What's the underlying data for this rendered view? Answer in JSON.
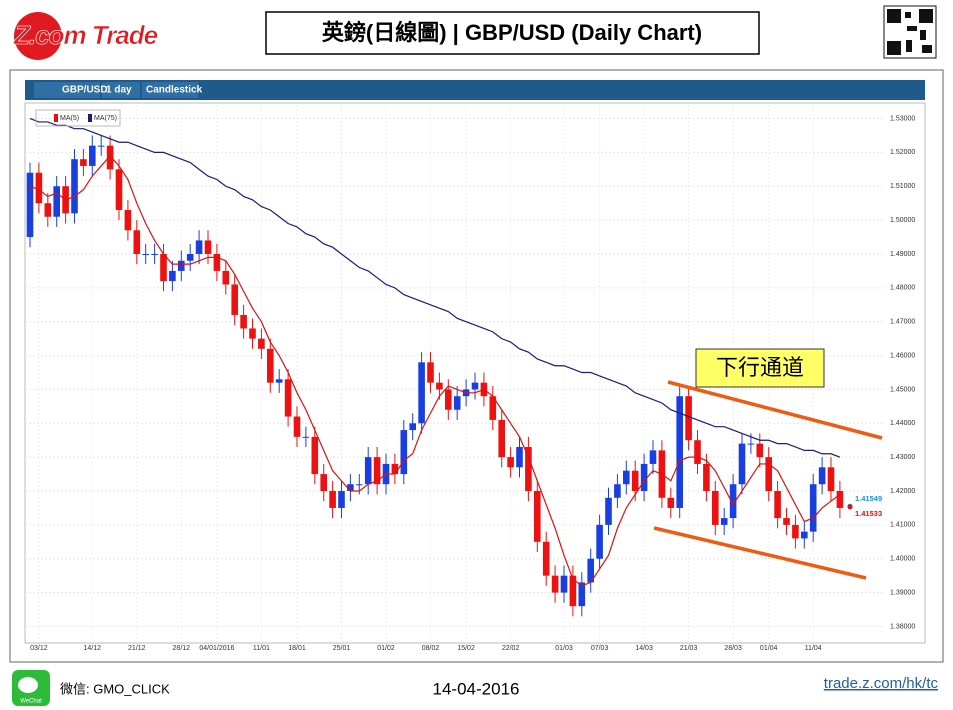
{
  "header": {
    "logo": "Z.com Trade",
    "title": "英鎊(日線圖) | GBP/USD  (Daily Chart)"
  },
  "toolbar": [
    "GBP/USD",
    "1 day",
    "Candlestick"
  ],
  "annotation": "下行通道",
  "footer": {
    "wechat_icon": "WeChat",
    "wechat": "微信: GMO_CLICK",
    "date": "14-04-2016",
    "link": "trade.z.com/hk/tc"
  },
  "chart_data": {
    "type": "candlestick",
    "categories": [
      null,
      "03/12",
      null,
      null,
      null,
      null,
      null,
      "14/12",
      null,
      null,
      null,
      null,
      "21/12",
      null,
      null,
      null,
      null,
      "28/12",
      null,
      null,
      null,
      "04/01/2016",
      null,
      null,
      null,
      null,
      "11/01",
      null,
      null,
      null,
      "18/01",
      null,
      null,
      null,
      null,
      "25/01",
      null,
      null,
      null,
      null,
      "01/02",
      null,
      null,
      null,
      null,
      "08/02",
      null,
      null,
      null,
      "15/02",
      null,
      null,
      null,
      null,
      "22/02",
      null,
      null,
      null,
      null,
      null,
      "01/03",
      null,
      null,
      null,
      "07/03",
      null,
      null,
      null,
      null,
      "14/03",
      null,
      null,
      null,
      null,
      "21/03",
      null,
      null,
      null,
      null,
      "28/03",
      null,
      null,
      null,
      "01/04",
      null,
      null,
      null,
      null,
      "11/04",
      null,
      null,
      null
    ],
    "open": [
      1.495,
      1.514,
      1.505,
      1.501,
      1.51,
      1.502,
      1.518,
      1.516,
      1.522,
      1.522,
      1.515,
      1.503,
      1.497,
      1.49,
      1.49,
      1.49,
      1.482,
      1.485,
      1.488,
      1.49,
      1.494,
      1.49,
      1.485,
      1.481,
      1.472,
      1.468,
      1.465,
      1.462,
      1.452,
      1.453,
      1.442,
      1.436,
      1.436,
      1.425,
      1.42,
      1.415,
      1.42,
      1.422,
      1.422,
      1.43,
      1.422,
      1.428,
      1.425,
      1.438,
      1.44,
      1.458,
      1.452,
      1.45,
      1.444,
      1.448,
      1.45,
      1.452,
      1.448,
      1.441,
      1.43,
      1.427,
      1.433,
      1.42,
      1.405,
      1.395,
      1.39,
      1.395,
      1.386,
      1.393,
      1.4,
      1.41,
      1.418,
      1.422,
      1.426,
      1.42,
      1.428,
      1.432,
      1.418,
      1.415,
      1.448,
      1.435,
      1.428,
      1.42,
      1.41,
      1.412,
      1.422,
      1.434,
      1.434,
      1.43,
      1.42,
      1.412,
      1.41,
      1.406,
      1.408,
      1.422,
      1.427,
      1.42
    ],
    "high": [
      1.517,
      1.517,
      1.508,
      1.513,
      1.513,
      1.521,
      1.521,
      1.525,
      1.525,
      1.525,
      1.518,
      1.506,
      1.5,
      1.493,
      1.493,
      1.493,
      1.488,
      1.491,
      1.493,
      1.497,
      1.497,
      1.493,
      1.488,
      1.484,
      1.475,
      1.471,
      1.468,
      1.465,
      1.456,
      1.456,
      1.445,
      1.439,
      1.439,
      1.428,
      1.423,
      1.423,
      1.425,
      1.425,
      1.433,
      1.433,
      1.431,
      1.431,
      1.441,
      1.443,
      1.461,
      1.461,
      1.455,
      1.453,
      1.451,
      1.453,
      1.455,
      1.455,
      1.451,
      1.444,
      1.433,
      1.436,
      1.436,
      1.423,
      1.408,
      1.398,
      1.398,
      1.398,
      1.396,
      1.403,
      1.413,
      1.421,
      1.425,
      1.429,
      1.429,
      1.431,
      1.435,
      1.435,
      1.421,
      1.451,
      1.451,
      1.438,
      1.431,
      1.423,
      1.415,
      1.425,
      1.437,
      1.437,
      1.437,
      1.433,
      1.423,
      1.415,
      1.413,
      1.411,
      1.425,
      1.43,
      1.43,
      1.423
    ],
    "low": [
      1.492,
      1.502,
      1.498,
      1.498,
      1.499,
      1.499,
      1.513,
      1.513,
      1.519,
      1.512,
      1.5,
      1.494,
      1.487,
      1.487,
      1.487,
      1.479,
      1.479,
      1.482,
      1.485,
      1.487,
      1.487,
      1.482,
      1.478,
      1.469,
      1.465,
      1.462,
      1.459,
      1.449,
      1.449,
      1.439,
      1.433,
      1.433,
      1.422,
      1.417,
      1.412,
      1.412,
      1.417,
      1.419,
      1.419,
      1.419,
      1.419,
      1.422,
      1.422,
      1.435,
      1.437,
      1.449,
      1.447,
      1.441,
      1.441,
      1.445,
      1.447,
      1.445,
      1.438,
      1.427,
      1.424,
      1.424,
      1.417,
      1.402,
      1.392,
      1.387,
      1.387,
      1.383,
      1.383,
      1.39,
      1.397,
      1.407,
      1.415,
      1.419,
      1.417,
      1.417,
      1.425,
      1.415,
      1.412,
      1.412,
      1.432,
      1.425,
      1.417,
      1.407,
      1.407,
      1.409,
      1.419,
      1.431,
      1.427,
      1.417,
      1.409,
      1.407,
      1.403,
      1.403,
      1.405,
      1.419,
      1.417,
      1.412
    ],
    "close": [
      1.514,
      1.505,
      1.501,
      1.51,
      1.502,
      1.518,
      1.516,
      1.522,
      1.522,
      1.515,
      1.503,
      1.497,
      1.49,
      1.49,
      1.49,
      1.482,
      1.485,
      1.488,
      1.49,
      1.494,
      1.49,
      1.485,
      1.481,
      1.472,
      1.468,
      1.465,
      1.462,
      1.452,
      1.453,
      1.442,
      1.436,
      1.436,
      1.425,
      1.42,
      1.415,
      1.42,
      1.422,
      1.422,
      1.43,
      1.422,
      1.428,
      1.425,
      1.438,
      1.44,
      1.458,
      1.452,
      1.45,
      1.444,
      1.448,
      1.45,
      1.452,
      1.448,
      1.441,
      1.43,
      1.427,
      1.433,
      1.42,
      1.405,
      1.395,
      1.39,
      1.395,
      1.386,
      1.393,
      1.4,
      1.41,
      1.418,
      1.422,
      1.426,
      1.42,
      1.428,
      1.432,
      1.418,
      1.415,
      1.448,
      1.435,
      1.428,
      1.42,
      1.41,
      1.412,
      1.422,
      1.434,
      1.434,
      1.43,
      1.42,
      1.412,
      1.41,
      1.406,
      1.408,
      1.422,
      1.427,
      1.42,
      1.415
    ],
    "up_color": "#1a3fe0",
    "down_color": "#ee1111",
    "series": [
      {
        "name": "MA(5)",
        "color": "#e01010",
        "values": [
          1.51,
          1.509,
          1.507,
          1.508,
          1.506,
          1.507,
          1.509,
          1.513,
          1.516,
          1.519,
          1.516,
          1.512,
          1.505,
          1.499,
          1.494,
          1.49,
          1.487,
          1.487,
          1.487,
          1.488,
          1.489,
          1.489,
          1.488,
          1.484,
          1.479,
          1.474,
          1.47,
          1.464,
          1.46,
          1.455,
          1.449,
          1.444,
          1.438,
          1.432,
          1.426,
          1.423,
          1.42,
          1.42,
          1.422,
          1.423,
          1.425,
          1.425,
          1.429,
          1.431,
          1.438,
          1.443,
          1.448,
          1.451,
          1.45,
          1.449,
          1.449,
          1.45,
          1.448,
          1.444,
          1.44,
          1.436,
          1.43,
          1.423,
          1.416,
          1.409,
          1.401,
          1.394,
          1.392,
          1.393,
          1.397,
          1.401,
          1.409,
          1.415,
          1.419,
          1.423,
          1.426,
          1.425,
          1.423,
          1.429,
          1.43,
          1.43,
          1.429,
          1.426,
          1.421,
          1.416,
          1.42,
          1.424,
          1.428,
          1.428,
          1.426,
          1.421,
          1.416,
          1.411,
          1.412,
          1.415,
          1.417,
          1.419
        ]
      },
      {
        "name": "MA(75)",
        "color": "#1a1a80",
        "values": [
          1.53,
          1.529,
          1.529,
          1.528,
          1.528,
          1.527,
          1.527,
          1.526,
          1.525,
          1.524,
          1.523,
          1.523,
          1.522,
          1.521,
          1.52,
          1.52,
          1.519,
          1.518,
          1.517,
          1.515,
          1.513,
          1.512,
          1.51,
          1.509,
          1.507,
          1.506,
          1.504,
          1.503,
          1.501,
          1.499,
          1.498,
          1.496,
          1.495,
          1.493,
          1.492,
          1.49,
          1.488,
          1.486,
          1.485,
          1.483,
          1.481,
          1.48,
          1.478,
          1.477,
          1.476,
          1.475,
          1.474,
          1.473,
          1.471,
          1.47,
          1.469,
          1.468,
          1.467,
          1.465,
          1.464,
          1.462,
          1.461,
          1.459,
          1.458,
          1.457,
          1.457,
          1.456,
          1.455,
          1.455,
          1.454,
          1.453,
          1.452,
          1.451,
          1.449,
          1.448,
          1.447,
          1.446,
          1.444,
          1.443,
          1.442,
          1.441,
          1.44,
          1.439,
          1.439,
          1.438,
          1.437,
          1.436,
          1.435,
          1.435,
          1.434,
          1.434,
          1.433,
          1.432,
          1.432,
          1.431,
          1.431,
          1.43
        ]
      }
    ],
    "price_markers": [
      {
        "value": 1.41549,
        "color": "#1e8fd6"
      },
      {
        "value": 1.41533,
        "color": "#e01010"
      }
    ],
    "ylim": [
      1.376,
      1.534
    ],
    "yticks": [
      {
        "value": 1.38,
        "label": "1.38000"
      },
      {
        "value": 1.39,
        "label": "1.39000"
      },
      {
        "value": 1.4,
        "label": "1.40000"
      },
      {
        "value": 1.41,
        "label": "1.41000"
      },
      {
        "value": 1.42,
        "label": "1.42000"
      },
      {
        "value": 1.43,
        "label": "1.43000"
      },
      {
        "value": 1.44,
        "label": "1.44000"
      },
      {
        "value": 1.45,
        "label": "1.45000"
      },
      {
        "value": 1.46,
        "label": "1.46000"
      },
      {
        "value": 1.47,
        "label": "1.47000"
      },
      {
        "value": 1.48,
        "label": "1.48000"
      },
      {
        "value": 1.49,
        "label": "1.49000"
      },
      {
        "value": 1.5,
        "label": "1.50000"
      },
      {
        "value": 1.51,
        "label": "1.51000"
      },
      {
        "value": 1.52,
        "label": "1.52000"
      },
      {
        "value": 1.53,
        "label": "1.53000"
      }
    ],
    "grid": true
  }
}
